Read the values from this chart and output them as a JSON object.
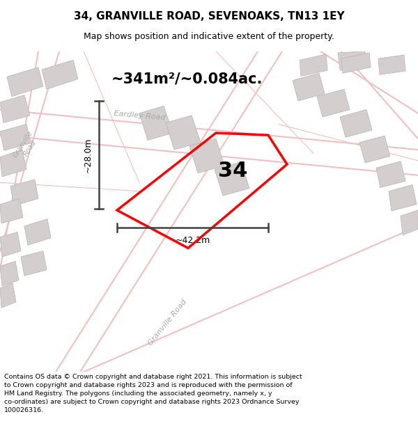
{
  "title": "34, GRANVILLE ROAD, SEVENOAKS, TN13 1EY",
  "subtitle": "Map shows position and indicative extent of the property.",
  "area_label": "~341m²/~0.084ac.",
  "dim_width": "~42.2m",
  "dim_height": "~28.0m",
  "property_number": "34",
  "footer": "Contains OS data © Crown copyright and database right 2021. This information is subject\nto Crown copyright and database rights 2023 and is reproduced with the permission of\nHM Land Registry. The polygons (including the associated geometry, namely x, y\nco-ordinates) are subject to Crown copyright and database rights 2023 Ordnance Survey\n100026316.",
  "map_bg": "#f8f4f4",
  "road_color": "#f0c0c0",
  "building_color": "#d5cece",
  "property_color": "#ff0000",
  "dim_color": "#404040",
  "title_fontsize": 11,
  "subtitle_fontsize": 9,
  "figsize": [
    6.0,
    6.25
  ],
  "dpi": 100
}
